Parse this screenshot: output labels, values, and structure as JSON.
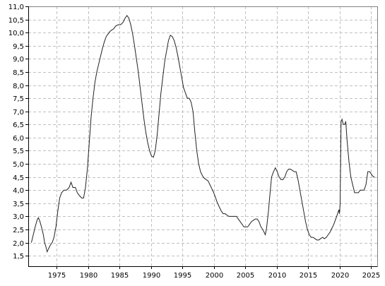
{
  "chart_data": {
    "type": "line",
    "title": "",
    "xlabel": "",
    "ylabel": "",
    "xlim": [
      1970.5,
      2026
    ],
    "ylim": [
      1.1,
      11.0
    ],
    "grid": true,
    "x_ticks": [
      1975,
      1980,
      1985,
      1990,
      1995,
      2000,
      2005,
      2010,
      2015,
      2020,
      2025
    ],
    "x_tick_labels": [
      "1975",
      "1980",
      "1985",
      "1990",
      "1995",
      "2000",
      "2005",
      "2010",
      "2015",
      "2020",
      "2025"
    ],
    "y_ticks": [
      1.5,
      2.0,
      2.5,
      3.0,
      3.5,
      4.0,
      4.5,
      5.0,
      5.5,
      6.0,
      6.5,
      7.0,
      7.5,
      8.0,
      8.5,
      9.0,
      9.5,
      10.0,
      10.5,
      11.0
    ],
    "y_tick_labels": [
      "1,5",
      "2,0",
      "2,5",
      "3,0",
      "3,5",
      "4,0",
      "4,5",
      "5,0",
      "5,5",
      "6,0",
      "6,5",
      "7,0",
      "7,5",
      "8,0",
      "8,5",
      "9,0",
      "9,5",
      "10,0",
      "10,5",
      "11,0"
    ],
    "series": [
      {
        "points": [
          [
            1971.0,
            2.0
          ],
          [
            1971.3,
            2.3
          ],
          [
            1971.6,
            2.6
          ],
          [
            1971.9,
            2.85
          ],
          [
            1972.1,
            2.95
          ],
          [
            1972.3,
            2.85
          ],
          [
            1972.6,
            2.6
          ],
          [
            1972.9,
            2.3
          ],
          [
            1973.1,
            2.0
          ],
          [
            1973.3,
            1.85
          ],
          [
            1973.5,
            1.65
          ],
          [
            1973.7,
            1.75
          ],
          [
            1974.0,
            1.9
          ],
          [
            1974.3,
            2.0
          ],
          [
            1974.6,
            2.2
          ],
          [
            1974.9,
            2.6
          ],
          [
            1975.2,
            3.2
          ],
          [
            1975.5,
            3.7
          ],
          [
            1975.8,
            3.9
          ],
          [
            1976.2,
            4.0
          ],
          [
            1976.6,
            4.0
          ],
          [
            1977.0,
            4.1
          ],
          [
            1977.3,
            4.3
          ],
          [
            1977.6,
            4.1
          ],
          [
            1978.0,
            4.1
          ],
          [
            1978.3,
            3.9
          ],
          [
            1978.6,
            3.8
          ],
          [
            1979.0,
            3.7
          ],
          [
            1979.3,
            3.7
          ],
          [
            1979.6,
            4.1
          ],
          [
            1979.9,
            4.8
          ],
          [
            1980.2,
            5.8
          ],
          [
            1980.5,
            6.8
          ],
          [
            1980.8,
            7.5
          ],
          [
            1981.1,
            8.1
          ],
          [
            1981.4,
            8.5
          ],
          [
            1981.7,
            8.8
          ],
          [
            1982.0,
            9.1
          ],
          [
            1982.3,
            9.4
          ],
          [
            1982.6,
            9.65
          ],
          [
            1982.9,
            9.85
          ],
          [
            1983.2,
            9.95
          ],
          [
            1983.5,
            10.05
          ],
          [
            1983.8,
            10.1
          ],
          [
            1984.1,
            10.15
          ],
          [
            1984.4,
            10.25
          ],
          [
            1984.8,
            10.3
          ],
          [
            1985.2,
            10.3
          ],
          [
            1985.6,
            10.4
          ],
          [
            1985.9,
            10.55
          ],
          [
            1986.2,
            10.65
          ],
          [
            1986.5,
            10.55
          ],
          [
            1986.8,
            10.3
          ],
          [
            1987.1,
            9.95
          ],
          [
            1987.4,
            9.5
          ],
          [
            1987.7,
            9.0
          ],
          [
            1988.0,
            8.5
          ],
          [
            1988.3,
            7.9
          ],
          [
            1988.6,
            7.3
          ],
          [
            1988.9,
            6.7
          ],
          [
            1989.2,
            6.2
          ],
          [
            1989.5,
            5.8
          ],
          [
            1989.8,
            5.5
          ],
          [
            1990.1,
            5.3
          ],
          [
            1990.4,
            5.25
          ],
          [
            1990.7,
            5.5
          ],
          [
            1991.0,
            6.1
          ],
          [
            1991.3,
            6.9
          ],
          [
            1991.6,
            7.7
          ],
          [
            1991.9,
            8.3
          ],
          [
            1992.2,
            8.9
          ],
          [
            1992.5,
            9.3
          ],
          [
            1992.8,
            9.7
          ],
          [
            1993.1,
            9.9
          ],
          [
            1993.4,
            9.85
          ],
          [
            1993.7,
            9.7
          ],
          [
            1994.0,
            9.45
          ],
          [
            1994.3,
            9.1
          ],
          [
            1994.6,
            8.7
          ],
          [
            1994.9,
            8.3
          ],
          [
            1995.2,
            7.9
          ],
          [
            1995.5,
            7.7
          ],
          [
            1995.8,
            7.5
          ],
          [
            1996.1,
            7.5
          ],
          [
            1996.4,
            7.35
          ],
          [
            1996.7,
            7.0
          ],
          [
            1997.0,
            6.2
          ],
          [
            1997.3,
            5.5
          ],
          [
            1997.6,
            5.0
          ],
          [
            1997.9,
            4.7
          ],
          [
            1998.2,
            4.55
          ],
          [
            1998.5,
            4.45
          ],
          [
            1998.8,
            4.4
          ],
          [
            1999.1,
            4.35
          ],
          [
            1999.4,
            4.2
          ],
          [
            1999.7,
            4.05
          ],
          [
            2000.0,
            3.9
          ],
          [
            2000.3,
            3.7
          ],
          [
            2000.6,
            3.5
          ],
          [
            2000.9,
            3.35
          ],
          [
            2001.2,
            3.2
          ],
          [
            2001.5,
            3.1
          ],
          [
            2001.8,
            3.1
          ],
          [
            2002.1,
            3.05
          ],
          [
            2002.4,
            3.0
          ],
          [
            2002.7,
            3.0
          ],
          [
            2003.0,
            3.0
          ],
          [
            2003.3,
            3.0
          ],
          [
            2003.6,
            3.0
          ],
          [
            2003.9,
            2.9
          ],
          [
            2004.2,
            2.8
          ],
          [
            2004.5,
            2.7
          ],
          [
            2004.8,
            2.6
          ],
          [
            2005.1,
            2.6
          ],
          [
            2005.4,
            2.6
          ],
          [
            2005.7,
            2.7
          ],
          [
            2006.0,
            2.8
          ],
          [
            2006.3,
            2.85
          ],
          [
            2006.6,
            2.9
          ],
          [
            2006.9,
            2.9
          ],
          [
            2007.2,
            2.8
          ],
          [
            2007.5,
            2.6
          ],
          [
            2007.8,
            2.5
          ],
          [
            2008.0,
            2.4
          ],
          [
            2008.2,
            2.3
          ],
          [
            2008.4,
            2.55
          ],
          [
            2008.7,
            3.2
          ],
          [
            2009.0,
            4.0
          ],
          [
            2009.2,
            4.5
          ],
          [
            2009.5,
            4.7
          ],
          [
            2009.8,
            4.85
          ],
          [
            2010.1,
            4.7
          ],
          [
            2010.4,
            4.5
          ],
          [
            2010.7,
            4.4
          ],
          [
            2011.0,
            4.4
          ],
          [
            2011.3,
            4.5
          ],
          [
            2011.6,
            4.7
          ],
          [
            2011.9,
            4.8
          ],
          [
            2012.2,
            4.8
          ],
          [
            2012.5,
            4.75
          ],
          [
            2012.8,
            4.7
          ],
          [
            2013.1,
            4.7
          ],
          [
            2013.4,
            4.4
          ],
          [
            2013.7,
            4.0
          ],
          [
            2014.0,
            3.6
          ],
          [
            2014.3,
            3.2
          ],
          [
            2014.6,
            2.8
          ],
          [
            2014.9,
            2.5
          ],
          [
            2015.2,
            2.3
          ],
          [
            2015.5,
            2.2
          ],
          [
            2015.8,
            2.2
          ],
          [
            2016.1,
            2.15
          ],
          [
            2016.4,
            2.1
          ],
          [
            2016.7,
            2.1
          ],
          [
            2017.0,
            2.15
          ],
          [
            2017.3,
            2.2
          ],
          [
            2017.6,
            2.15
          ],
          [
            2017.9,
            2.2
          ],
          [
            2018.2,
            2.3
          ],
          [
            2018.5,
            2.4
          ],
          [
            2018.8,
            2.55
          ],
          [
            2019.1,
            2.7
          ],
          [
            2019.4,
            2.9
          ],
          [
            2019.7,
            3.1
          ],
          [
            2019.9,
            3.25
          ],
          [
            2020.0,
            3.1
          ],
          [
            2020.1,
            3.5
          ],
          [
            2020.25,
            6.6
          ],
          [
            2020.4,
            6.7
          ],
          [
            2020.6,
            6.5
          ],
          [
            2020.8,
            6.5
          ],
          [
            2021.0,
            6.6
          ],
          [
            2021.2,
            5.9
          ],
          [
            2021.5,
            5.1
          ],
          [
            2021.8,
            4.5
          ],
          [
            2022.1,
            4.2
          ],
          [
            2022.4,
            3.9
          ],
          [
            2022.7,
            3.9
          ],
          [
            2023.0,
            3.9
          ],
          [
            2023.3,
            4.0
          ],
          [
            2023.6,
            4.0
          ],
          [
            2023.9,
            4.0
          ],
          [
            2024.2,
            4.2
          ],
          [
            2024.5,
            4.7
          ],
          [
            2024.8,
            4.7
          ],
          [
            2025.1,
            4.6
          ],
          [
            2025.4,
            4.5
          ],
          [
            2025.6,
            4.5
          ]
        ]
      }
    ]
  }
}
